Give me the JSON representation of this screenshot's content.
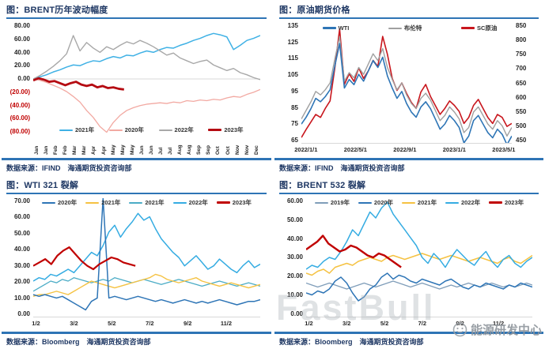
{
  "page": {
    "background": "#ffffff",
    "accent_color": "#2E74B5",
    "title_color": "#1F3864"
  },
  "watermark": {
    "brand": "FastBull",
    "label": "能源研发中心"
  },
  "chart_data": [
    {
      "type": "line",
      "title": "图：BRENT历年波动幅度",
      "source": "数据来源：IFIND　海通期货投资咨询部",
      "ylim": [
        -80,
        80
      ],
      "zero_line": true,
      "yticks": [
        "80.00",
        "60.00",
        "40.00",
        "20.00",
        "0.00",
        "(20.00)",
        "(40.00)",
        "(60.00)",
        "(80.00)"
      ],
      "xticks_rotated": true,
      "xticks": [
        "Jan",
        "Jan",
        "Feb",
        "Feb",
        "Mar",
        "Mar",
        "Apr",
        "Apr",
        "May",
        "May",
        "May",
        "Jun",
        "Jun",
        "Jul",
        "Jul",
        "Aug",
        "Aug",
        "Sep",
        "Sep",
        "Oct",
        "Oct",
        "Nov",
        "Nov",
        "Dec"
      ],
      "legend": [
        {
          "label": "2021年",
          "color": "#3FB1E5"
        },
        {
          "label": "2020年",
          "color": "#F2A9A2"
        },
        {
          "label": "2022年",
          "color": "#A8A8A8"
        },
        {
          "label": "2023年",
          "color": "#B50B12",
          "thick": true
        }
      ],
      "series": [
        {
          "name": "2021年",
          "color": "#3FB1E5",
          "width": 1.5,
          "values": [
            0,
            3,
            6,
            10,
            13,
            17,
            20,
            19,
            23,
            26,
            25,
            29,
            32,
            30,
            34,
            33,
            37,
            40,
            38,
            42,
            45,
            44,
            48,
            51,
            55,
            58,
            62,
            65,
            63,
            60,
            42,
            48,
            55,
            58,
            62
          ]
        },
        {
          "name": "2020年",
          "color": "#F2A9A2",
          "width": 1.3,
          "values": [
            0,
            -2,
            -5,
            -9,
            -13,
            -18,
            -25,
            -33,
            -45,
            -55,
            -68,
            -76,
            -62,
            -52,
            -45,
            -41,
            -38,
            -36,
            -35,
            -34,
            -35,
            -33,
            -34,
            -31,
            -32,
            -30,
            -31,
            -29,
            -30,
            -27,
            -25,
            -26,
            -22,
            -19,
            -15
          ]
        },
        {
          "name": "2022年",
          "color": "#A8A8A8",
          "width": 1.4,
          "values": [
            0,
            5,
            11,
            18,
            26,
            36,
            62,
            40,
            52,
            44,
            38,
            46,
            42,
            48,
            53,
            50,
            55,
            51,
            46,
            40,
            34,
            37,
            30,
            26,
            22,
            25,
            27,
            20,
            16,
            12,
            15,
            9,
            6,
            2,
            -1
          ]
        },
        {
          "name": "2023年",
          "color": "#B50B12",
          "width": 2.8,
          "span": 0.4,
          "values": [
            -2,
            1,
            -1,
            -4,
            -3,
            -6,
            -9,
            -6,
            -4,
            -8,
            -10,
            -8,
            -12,
            -10,
            -13,
            -12,
            -14,
            -15
          ]
        }
      ]
    },
    {
      "type": "line",
      "title": "图：原油期货价格",
      "source": "数据来源：IFIND　海通期货投资咨询部",
      "ylim": [
        65,
        135
      ],
      "y2lim": [
        450,
        850
      ],
      "yticks": [
        "135",
        "125",
        "115",
        "105",
        "95",
        "85",
        "75",
        "65"
      ],
      "yticks_right": [
        "850",
        "800",
        "750",
        "700",
        "650",
        "600",
        "550",
        "500",
        "450"
      ],
      "xticks": [
        "2022/1/1",
        "2022/5/1",
        "2022/9/1",
        "2023/1/1",
        "2023/5/1"
      ],
      "xtick_pos": [
        0,
        23.5,
        47,
        70.5,
        94
      ],
      "legend": [
        {
          "label": "WTI",
          "color": "#2E75B6",
          "thick": true
        },
        {
          "label": "布伦特",
          "color": "#A0A0A0"
        },
        {
          "label": "SC原油",
          "color": "#C8161D",
          "thick": true
        }
      ],
      "series": [
        {
          "name": "SC原油",
          "color": "#C8161D",
          "width": 1.6,
          "axis": "right",
          "values": [
            468,
            495,
            520,
            545,
            535,
            565,
            590,
            700,
            830,
            645,
            680,
            655,
            700,
            665,
            690,
            725,
            705,
            805,
            745,
            665,
            625,
            650,
            615,
            585,
            565,
            620,
            645,
            605,
            575,
            545,
            565,
            590,
            575,
            555,
            515,
            535,
            575,
            595,
            565,
            535,
            515,
            545,
            535,
            505,
            515
          ]
        },
        {
          "name": "布伦特",
          "color": "#A0A0A0",
          "width": 1.4,
          "values": [
            79,
            84,
            89,
            95,
            93,
            96,
            100,
            114,
            127,
            101,
            106,
            103,
            109,
            105,
            111,
            117,
            113,
            120,
            109,
            102,
            96,
            100,
            93,
            88,
            85,
            91,
            94,
            90,
            84,
            78,
            81,
            86,
            83,
            79,
            71,
            74,
            83,
            86,
            81,
            76,
            73,
            78,
            75,
            69,
            74
          ]
        },
        {
          "name": "WTI",
          "color": "#2E75B6",
          "width": 1.6,
          "values": [
            76,
            80,
            85,
            91,
            89,
            92,
            96,
            110,
            123,
            97,
            102,
            99,
            105,
            101,
            107,
            113,
            109,
            115,
            104,
            97,
            91,
            95,
            88,
            83,
            80,
            86,
            89,
            85,
            79,
            73,
            76,
            81,
            78,
            74,
            65,
            69,
            78,
            81,
            76,
            71,
            68,
            73,
            70,
            64,
            69
          ]
        }
      ]
    },
    {
      "type": "line",
      "title": "图：WTI 321 裂解",
      "source": "数据来源：Bloomberg　海通期货投资咨询部",
      "ylim": [
        0,
        70
      ],
      "yticks": [
        "70.00",
        "60.00",
        "50.00",
        "40.00",
        "30.00",
        "20.00",
        "10.00",
        "0.00"
      ],
      "xticks": [
        "1/2",
        "3/2",
        "5/2",
        "7/2",
        "9/2",
        "11/2"
      ],
      "xtick_pos": [
        0.5,
        17.2,
        33.9,
        50.6,
        67.3,
        84
      ],
      "legend": [
        {
          "label": "2020年",
          "color": "#2E75B6"
        },
        {
          "label": "2021年",
          "color": "#F5C242"
        },
        {
          "label": "2021年",
          "color": "#4BACC6"
        },
        {
          "label": "2022年",
          "color": "#35ACE2"
        },
        {
          "label": "2023年",
          "color": "#C00000",
          "thick": true
        }
      ],
      "series": [
        {
          "name": "2021年b",
          "color": "#4BACC6",
          "width": 1.3,
          "values": [
            15,
            17,
            19,
            21,
            20,
            22,
            21,
            23,
            22,
            21,
            20,
            21,
            22,
            21,
            23,
            22,
            21,
            20,
            21,
            22,
            21,
            20,
            19,
            20,
            21,
            22,
            21,
            20,
            19,
            18,
            19,
            20,
            21,
            20,
            19,
            18,
            19,
            20,
            19,
            18
          ]
        },
        {
          "name": "2021年",
          "color": "#F5C242",
          "width": 1.4,
          "values": [
            12,
            13,
            13,
            14,
            15,
            14,
            13,
            15,
            17,
            19,
            21,
            20,
            19,
            18,
            17,
            18,
            19,
            20,
            21,
            22,
            23,
            25,
            24,
            22,
            21,
            20,
            21,
            22,
            23,
            21,
            20,
            19,
            18,
            19,
            20,
            19,
            18,
            17,
            18,
            19
          ]
        },
        {
          "name": "2022年",
          "color": "#35ACE2",
          "width": 1.5,
          "values": [
            21,
            23,
            22,
            25,
            24,
            26,
            28,
            26,
            30,
            34,
            38,
            36,
            42,
            50,
            54,
            47,
            52,
            56,
            61,
            57,
            59,
            52,
            46,
            42,
            38,
            35,
            30,
            33,
            36,
            32,
            28,
            30,
            34,
            31,
            28,
            26,
            30,
            33,
            29,
            31
          ]
        },
        {
          "name": "2020年",
          "color": "#2E75B6",
          "width": 1.5,
          "values": [
            13,
            12,
            13,
            12,
            11,
            12,
            10,
            8,
            6,
            4,
            9,
            11,
            70,
            11,
            12,
            11,
            10,
            11,
            12,
            11,
            10,
            9,
            10,
            9,
            8,
            9,
            10,
            9,
            8,
            9,
            8,
            9,
            10,
            9,
            8,
            7,
            8,
            9,
            9,
            10
          ]
        },
        {
          "name": "2023年",
          "color": "#C00000",
          "width": 2.2,
          "span": 0.45,
          "values": [
            30,
            32,
            34,
            31,
            36,
            39,
            41,
            37,
            33,
            30,
            28,
            31,
            33,
            35,
            34,
            32,
            31,
            30
          ]
        }
      ]
    },
    {
      "type": "line",
      "title": "图：BRENT 532 裂解",
      "source": "数据来源：Bloomberg　海通期货投资咨询部",
      "ylim": [
        0,
        60
      ],
      "yticks": [
        "60.00",
        "50.00",
        "40.00",
        "30.00",
        "20.00",
        "10.00",
        "0.00"
      ],
      "xticks": [
        "1/2",
        "3/2",
        "5/2",
        "7/2",
        "9/2",
        "11/2"
      ],
      "xtick_pos": [
        0.5,
        17.2,
        33.9,
        50.6,
        67.3,
        84
      ],
      "legend": [
        {
          "label": "2019年",
          "color": "#7F9DB9"
        },
        {
          "label": "2020年",
          "color": "#2E75B6"
        },
        {
          "label": "2021年",
          "color": "#F5C242"
        },
        {
          "label": "2022年",
          "color": "#35ACE2"
        },
        {
          "label": "2023年",
          "color": "#C00000",
          "thick": true
        }
      ],
      "series": [
        {
          "name": "2019年",
          "color": "#7F9DB9",
          "width": 1.3,
          "values": [
            17,
            16,
            15,
            16,
            17,
            16,
            15,
            14,
            15,
            16,
            17,
            16,
            15,
            16,
            17,
            18,
            17,
            16,
            15,
            16,
            17,
            16,
            15,
            14,
            15,
            16,
            15,
            16,
            17,
            16,
            15,
            16,
            17,
            16,
            15,
            16,
            15,
            16,
            17,
            16
          ]
        },
        {
          "name": "2020年",
          "color": "#2E75B6",
          "width": 1.5,
          "values": [
            12,
            11,
            13,
            12,
            14,
            18,
            20,
            17,
            12,
            8,
            10,
            14,
            16,
            20,
            22,
            19,
            21,
            20,
            18,
            17,
            19,
            18,
            17,
            16,
            18,
            19,
            17,
            15,
            14,
            16,
            15,
            17,
            16,
            15,
            14,
            16,
            15,
            17,
            16,
            15
          ]
        },
        {
          "name": "2021年",
          "color": "#F5C242",
          "width": 1.5,
          "values": [
            22,
            21,
            23,
            24,
            22,
            25,
            26,
            27,
            26,
            28,
            29,
            30,
            29,
            28,
            30,
            31,
            30,
            29,
            30,
            31,
            32,
            31,
            30,
            29,
            30,
            31,
            30,
            29,
            28,
            29,
            30,
            29,
            28,
            27,
            29,
            30,
            28,
            27,
            29,
            31
          ]
        },
        {
          "name": "2022年",
          "color": "#35ACE2",
          "width": 1.5,
          "values": [
            24,
            26,
            25,
            28,
            30,
            29,
            33,
            38,
            44,
            41,
            47,
            53,
            50,
            55,
            58,
            52,
            48,
            44,
            40,
            36,
            30,
            27,
            32,
            29,
            25,
            30,
            34,
            31,
            28,
            26,
            30,
            33,
            28,
            25,
            29,
            31,
            27,
            25,
            28,
            30
          ]
        },
        {
          "name": "2023年",
          "color": "#C00000",
          "width": 2.4,
          "span": 0.42,
          "values": [
            34,
            36,
            38,
            41,
            37,
            35,
            33,
            34,
            36,
            35,
            33,
            31,
            30,
            32,
            31,
            29,
            27,
            25
          ]
        }
      ]
    }
  ]
}
